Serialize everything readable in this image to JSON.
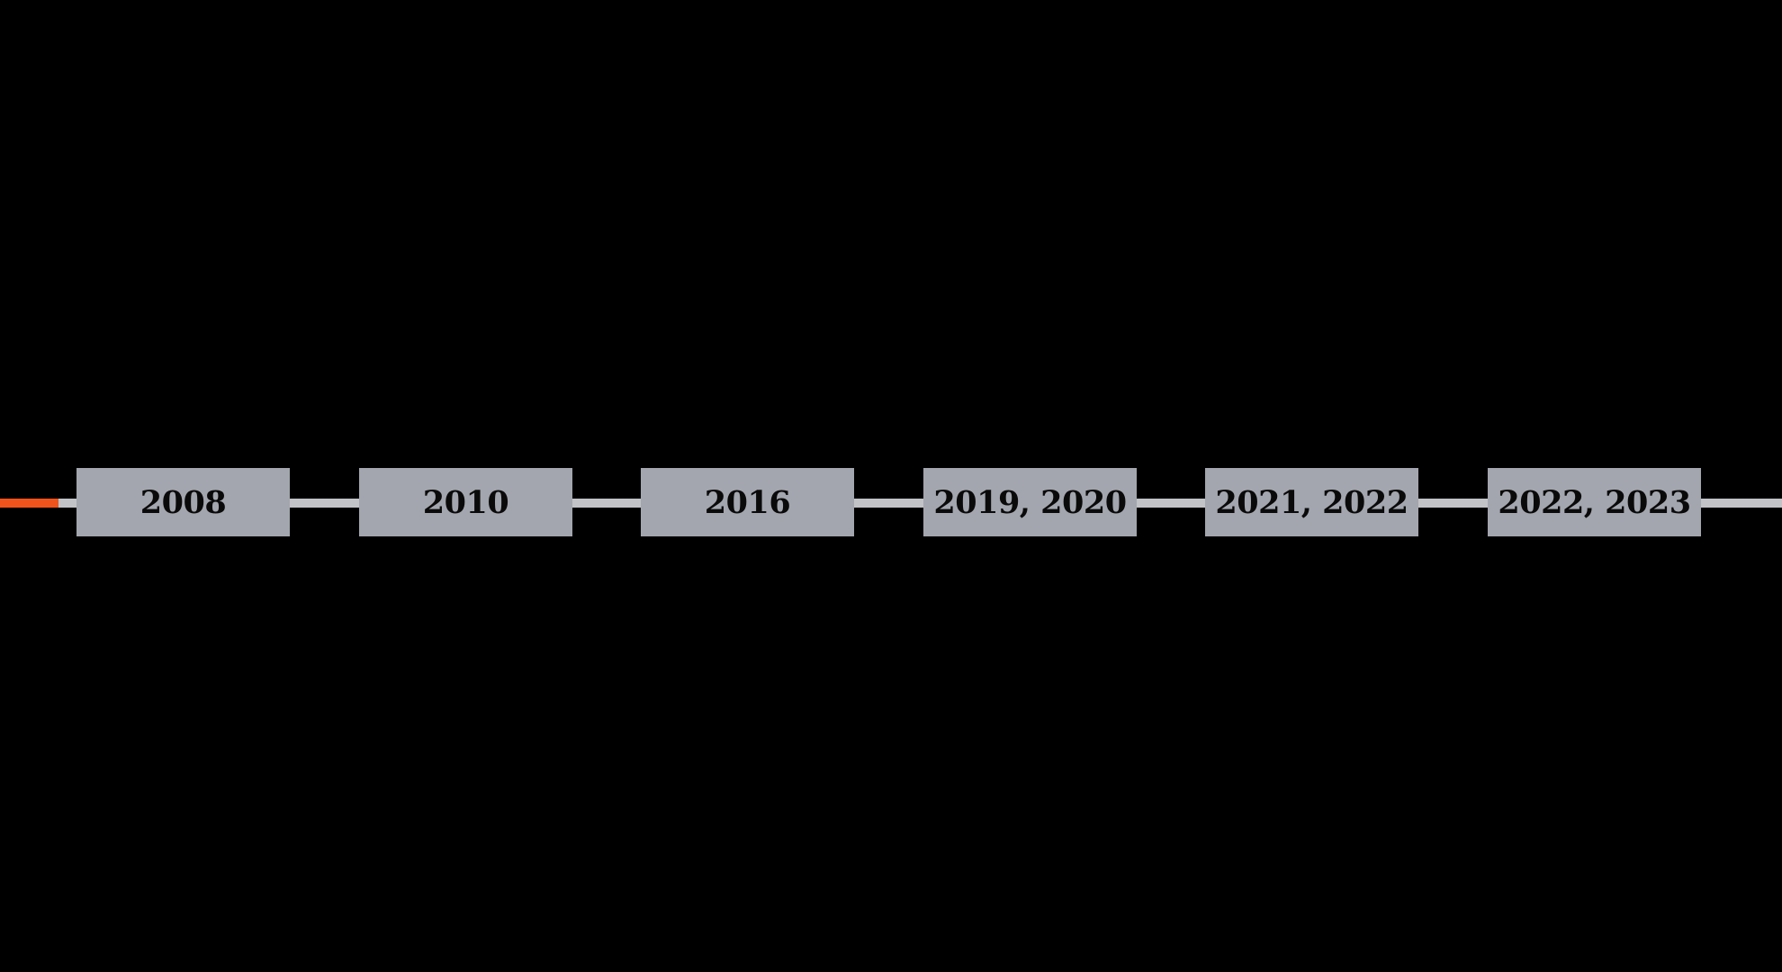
{
  "timeline": {
    "progress_percent": 3.3,
    "colors": {
      "progress": "#f0531c",
      "track": "#c2c3c6",
      "box": "#a3a6ae",
      "background": "#000000"
    },
    "items": [
      {
        "label": "2008"
      },
      {
        "label": "2010"
      },
      {
        "label": "2016"
      },
      {
        "label": "2019, 2020"
      },
      {
        "label": "2021, 2022"
      },
      {
        "label": "2022, 2023"
      }
    ]
  }
}
